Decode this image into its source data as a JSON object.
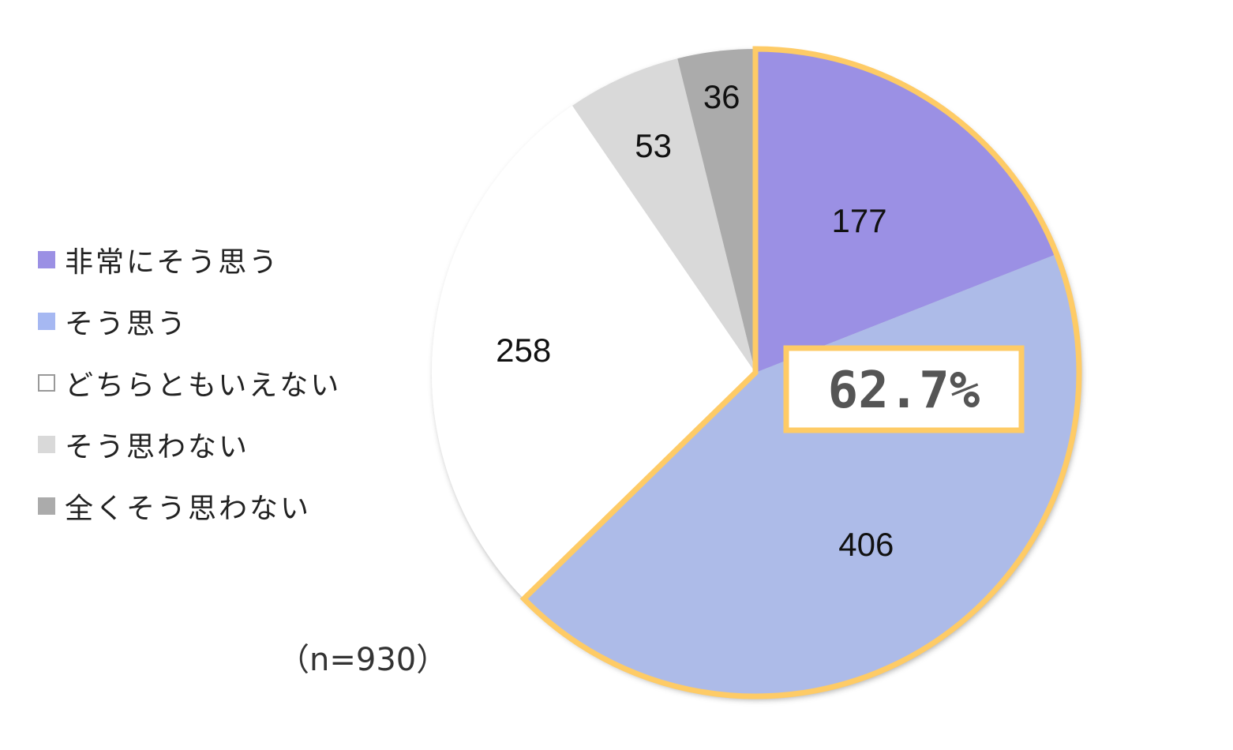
{
  "chart_data": {
    "type": "pie",
    "categories": [
      "非常にそう思う",
      "そう思う",
      "どちらともいえない",
      "そう思わない",
      "全くそう思わない"
    ],
    "values": [
      177,
      406,
      258,
      53,
      36
    ],
    "colors": [
      "#9b90e4",
      "#adbbe8",
      "#ffffff",
      "#d9d9d9",
      "#ababab"
    ],
    "legend_swatch_colors": [
      "#9b90e4",
      "#a6b8f2",
      "#ffffff",
      "#d9d9d9",
      "#ababab"
    ],
    "start": "12 o'clock",
    "direction": "clockwise",
    "legend_position": "left",
    "highlight": {
      "series_indices": [
        0,
        1
      ],
      "outline_color": "#fecb66",
      "label": "62.7%"
    },
    "note": "（n=930）"
  }
}
